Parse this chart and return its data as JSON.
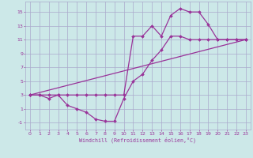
{
  "xlabel": "Windchill (Refroidissement éolien,°C)",
  "bg_color": "#cce8e8",
  "grid_color": "#aaaacc",
  "line_color": "#993399",
  "xlim": [
    -0.5,
    23.5
  ],
  "ylim": [
    -2,
    16.5
  ],
  "xticks": [
    0,
    1,
    2,
    3,
    4,
    5,
    6,
    7,
    8,
    9,
    10,
    11,
    12,
    13,
    14,
    15,
    16,
    17,
    18,
    19,
    20,
    21,
    22,
    23
  ],
  "yticks": [
    -1,
    1,
    3,
    5,
    7,
    9,
    11,
    13,
    15
  ],
  "line1_x": [
    0,
    1,
    2,
    3,
    4,
    5,
    6,
    7,
    8,
    9,
    10,
    11,
    12,
    13,
    14,
    15,
    16,
    17,
    18,
    19,
    20,
    21,
    22,
    23
  ],
  "line1_y": [
    3,
    3,
    3,
    3,
    3,
    3,
    3,
    3,
    3,
    3,
    3,
    11.5,
    11.5,
    13,
    11.5,
    14.5,
    15.5,
    15,
    15,
    13.2,
    11,
    11,
    11,
    11
  ],
  "line2_x": [
    0,
    1,
    2,
    3,
    4,
    5,
    6,
    7,
    8,
    9,
    10,
    11,
    12,
    13,
    14,
    15,
    16,
    17,
    18,
    19,
    20,
    21,
    22,
    23
  ],
  "line2_y": [
    3,
    3,
    2.5,
    3,
    1.5,
    1,
    0.5,
    -0.5,
    -0.8,
    -0.8,
    2.5,
    5,
    6,
    8,
    9.5,
    11.5,
    11.5,
    11,
    11,
    11,
    11,
    11,
    11,
    11
  ],
  "line3_x": [
    0,
    23
  ],
  "line3_y": [
    3,
    11
  ]
}
